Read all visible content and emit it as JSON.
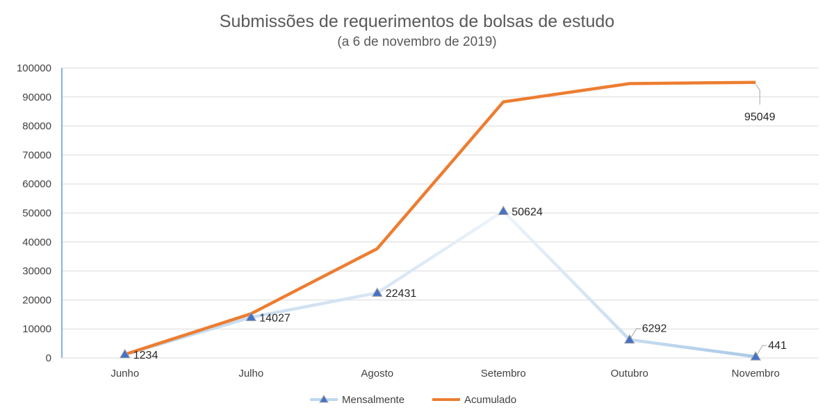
{
  "chart_data": {
    "type": "line",
    "title": "Submissões de requerimentos de bolsas de estudo",
    "subtitle": "(a 6 de novembro de 2019)",
    "categories": [
      "Junho",
      "Julho",
      "Agosto",
      "Setembro",
      "Outubro",
      "Novembro"
    ],
    "ylim": [
      0,
      100000
    ],
    "yticks": [
      0,
      10000,
      20000,
      30000,
      40000,
      50000,
      60000,
      70000,
      80000,
      90000,
      100000
    ],
    "grid": true,
    "legend_position": "bottom",
    "series": [
      {
        "name": "Mensalmente",
        "values": [
          1234,
          14027,
          22431,
          50624,
          6292,
          441
        ],
        "labels": [
          "1234",
          "14027",
          "22431",
          "50624",
          "6292",
          "441"
        ],
        "color": "#bdd7ee",
        "marker": "triangle"
      },
      {
        "name": "Acumulado",
        "values": [
          1234,
          15261,
          37692,
          88316,
          94608,
          95049
        ],
        "labels": [
          "",
          "",
          "",
          "",
          "",
          "95049"
        ],
        "color": "#ed7d31"
      }
    ]
  }
}
